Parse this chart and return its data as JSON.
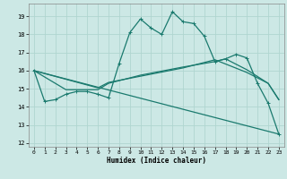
{
  "xlabel": "Humidex (Indice chaleur)",
  "bg_color": "#cce8e5",
  "grid_color": "#b0d5d0",
  "line_color": "#1a7a6e",
  "xlim": [
    -0.5,
    23.5
  ],
  "ylim": [
    11.8,
    19.7
  ],
  "yticks": [
    12,
    13,
    14,
    15,
    16,
    17,
    18,
    19
  ],
  "xticks": [
    0,
    1,
    2,
    3,
    4,
    5,
    6,
    7,
    8,
    9,
    10,
    11,
    12,
    13,
    14,
    15,
    16,
    17,
    18,
    19,
    20,
    21,
    22,
    23
  ],
  "line1_x": [
    0,
    1,
    2,
    3,
    4,
    5,
    6,
    7,
    8,
    9,
    10,
    11,
    12,
    13,
    14,
    15,
    16,
    17,
    18,
    19,
    20,
    21,
    22,
    23
  ],
  "line1_y": [
    16.0,
    14.3,
    14.4,
    14.7,
    14.85,
    14.85,
    14.7,
    14.5,
    16.4,
    18.1,
    18.85,
    18.35,
    18.0,
    19.25,
    18.7,
    18.6,
    17.9,
    16.5,
    16.65,
    16.9,
    16.7,
    15.3,
    14.2,
    12.5
  ],
  "line2_x": [
    0,
    3,
    5,
    6,
    7,
    10,
    14,
    17,
    18,
    20,
    22,
    23
  ],
  "line2_y": [
    16.0,
    14.95,
    14.95,
    14.95,
    15.3,
    15.75,
    16.2,
    16.5,
    16.65,
    16.05,
    15.3,
    14.4
  ],
  "line3_x": [
    0,
    6,
    7,
    14,
    17,
    20,
    22,
    23
  ],
  "line3_y": [
    16.0,
    15.05,
    15.35,
    16.15,
    16.6,
    15.9,
    15.3,
    14.4
  ],
  "line4_x": [
    0,
    23
  ],
  "line4_y": [
    16.0,
    12.5
  ],
  "lw": 0.9
}
